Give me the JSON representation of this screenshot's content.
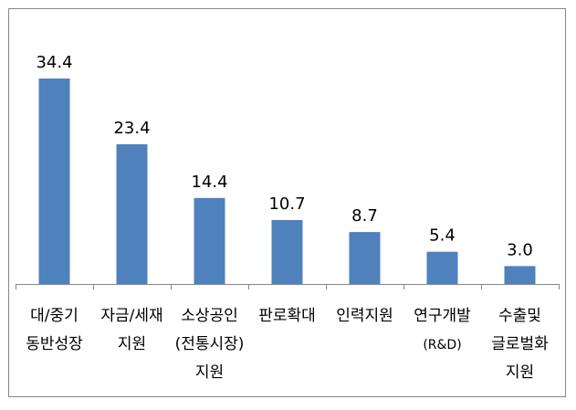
{
  "colors": {
    "bar": "#4F81BD",
    "axis": "#868686",
    "frame": "#868686"
  },
  "chart_data": {
    "type": "bar",
    "title": "",
    "xlabel": "",
    "ylabel": "",
    "ylim": [
      0,
      40
    ],
    "grid": false,
    "legend": "none",
    "categories": [
      [
        "대/중기",
        "동반성장"
      ],
      [
        "자금/세재",
        "지원"
      ],
      [
        "소상공인",
        "(전통시장)",
        "지원"
      ],
      [
        "판로확대"
      ],
      [
        "인력지원"
      ],
      [
        "연구개발",
        "(R&D)"
      ],
      [
        "수출및",
        "글로벌화",
        "지원"
      ]
    ],
    "values": [
      34.4,
      23.4,
      14.4,
      10.7,
      8.7,
      5.4,
      3.0
    ],
    "data_labels": [
      "34.4",
      "23.4",
      "14.4",
      "10.7",
      "8.7",
      "5.4",
      "3.0"
    ]
  }
}
